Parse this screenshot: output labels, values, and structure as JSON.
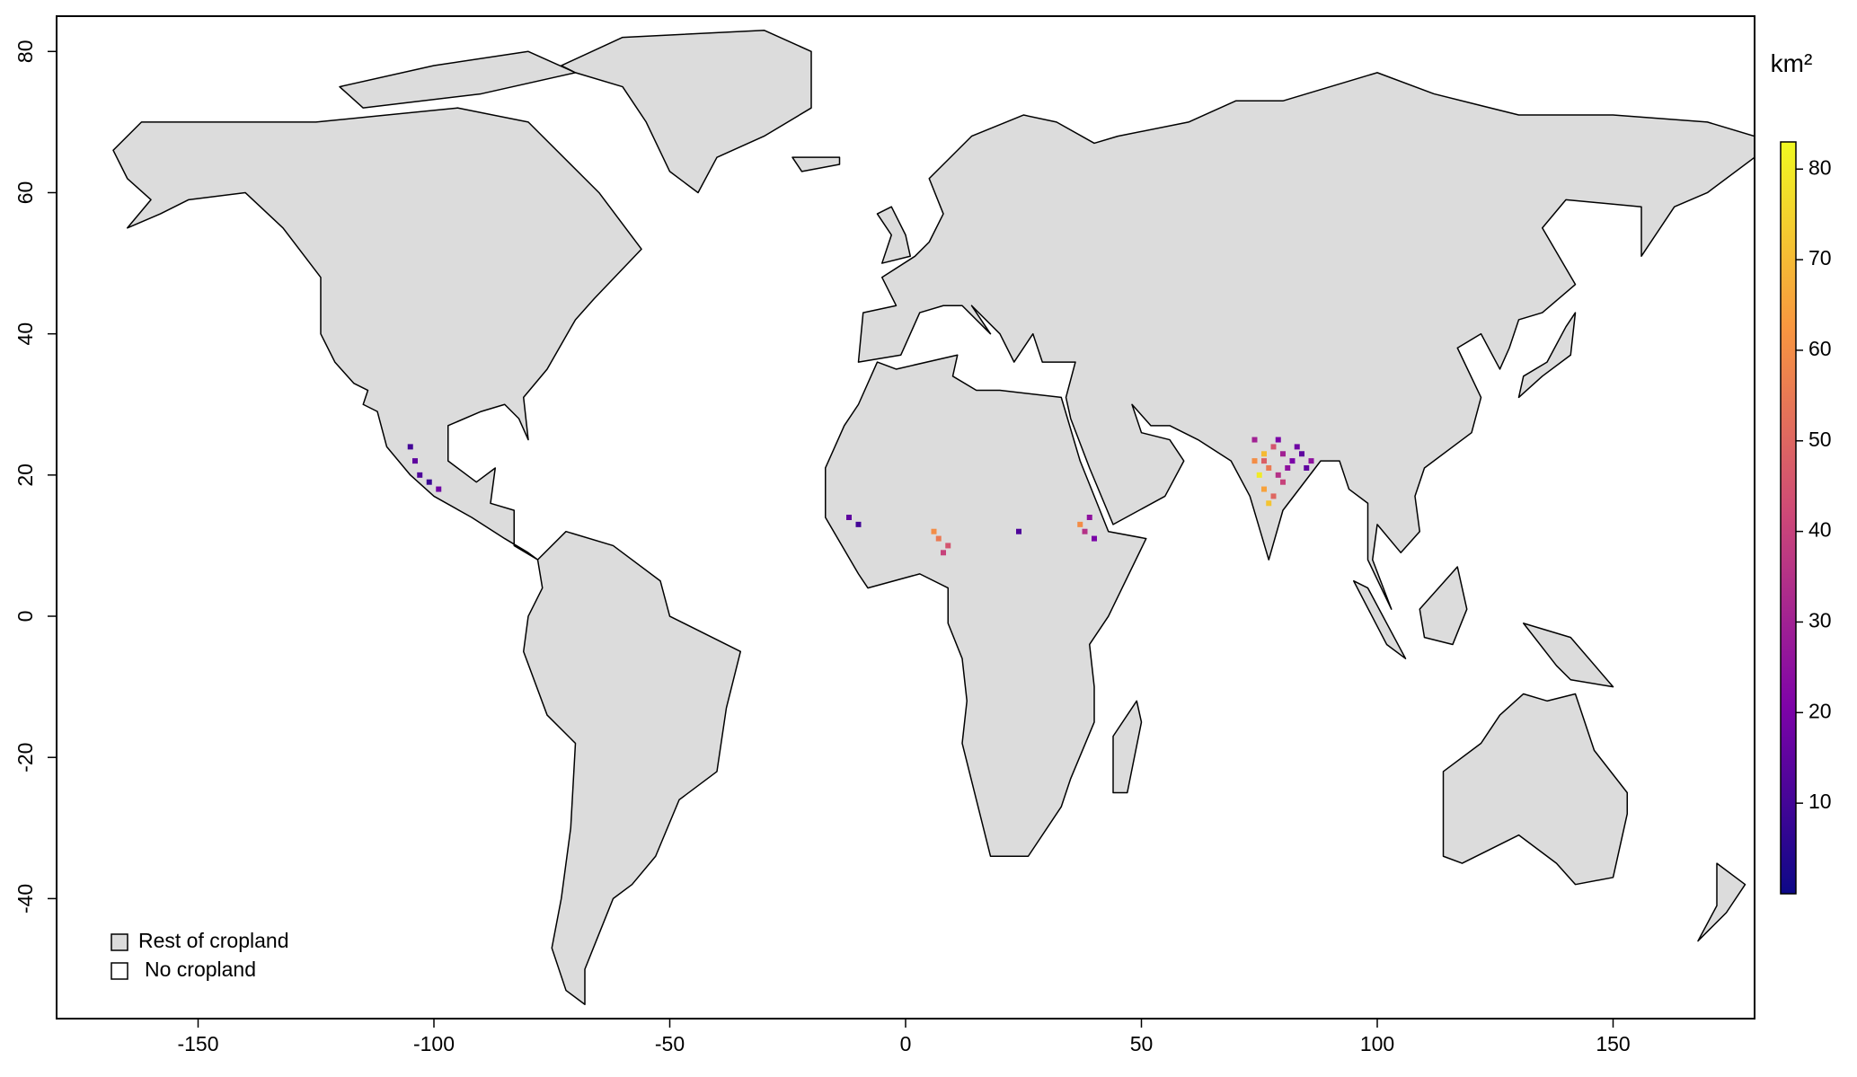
{
  "chart_data": {
    "type": "map",
    "xlim": [
      -180,
      180
    ],
    "ylim": [
      -57,
      85
    ],
    "xticks": [
      -150,
      -100,
      -50,
      0,
      50,
      100,
      150
    ],
    "yticks": [
      -40,
      -20,
      0,
      20,
      40,
      60,
      80
    ],
    "legend": [
      {
        "label": "Rest of cropland",
        "color": "#dcdcdc"
      },
      {
        "label": "No cropland",
        "color": "#ffffff"
      }
    ],
    "colorbar": {
      "title": "km²",
      "lim": [
        0,
        83
      ],
      "ticks": [
        10,
        20,
        30,
        40,
        50,
        60,
        70,
        80
      ],
      "colors": [
        "#0d0887",
        "#7e03a8",
        "#cc4778",
        "#f89540",
        "#f0f921"
      ]
    },
    "points": {
      "lon": [
        74,
        76,
        78,
        80,
        82,
        84,
        86,
        75,
        77,
        79,
        81,
        83,
        76,
        78,
        80,
        74,
        77,
        79,
        85,
        76,
        -104,
        -103,
        -101,
        -99,
        -105,
        7,
        9,
        6,
        8,
        38,
        39,
        37,
        40,
        24,
        -10,
        -12
      ],
      "lat": [
        22,
        23,
        24,
        23,
        22,
        23,
        22,
        20,
        21,
        20,
        21,
        24,
        18,
        17,
        19,
        25,
        16,
        25,
        21,
        22,
        22,
        20,
        19,
        18,
        24,
        11,
        10,
        12,
        9,
        12,
        14,
        13,
        11,
        12,
        13,
        14
      ],
      "values": [
        60,
        70,
        45,
        30,
        20,
        15,
        25,
        80,
        55,
        35,
        25,
        18,
        65,
        50,
        40,
        30,
        72,
        20,
        15,
        48,
        15,
        12,
        8,
        18,
        10,
        55,
        45,
        60,
        40,
        35,
        25,
        60,
        20,
        12,
        10,
        15
      ]
    }
  }
}
